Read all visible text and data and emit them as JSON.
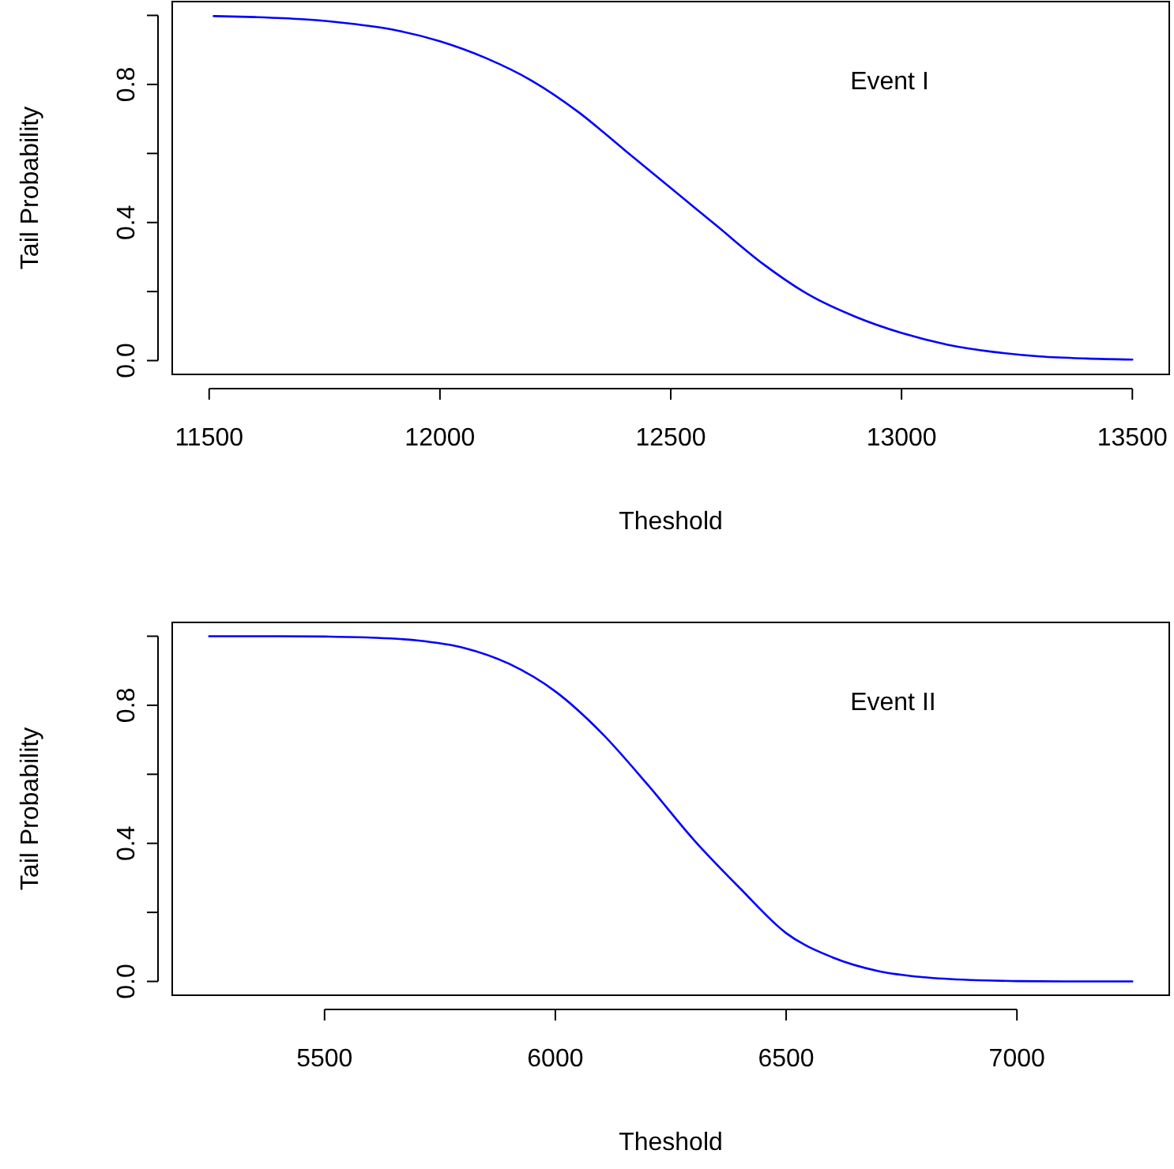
{
  "chart_data": [
    {
      "type": "line",
      "xlabel": "Theshold",
      "ylabel": "Tail Probability",
      "annotations": [
        "Event I"
      ],
      "x": [
        11510,
        11600,
        11700,
        11800,
        11900,
        12000,
        12100,
        12200,
        12300,
        12400,
        12500,
        12600,
        12700,
        12800,
        12900,
        13000,
        13100,
        13200,
        13300,
        13400,
        13500
      ],
      "series": [
        {
          "color": "#0000ff",
          "values": [
            0.998,
            0.995,
            0.989,
            0.977,
            0.958,
            0.925,
            0.876,
            0.81,
            0.72,
            0.61,
            0.5,
            0.39,
            0.28,
            0.19,
            0.127,
            0.08,
            0.046,
            0.025,
            0.012,
            0.006,
            0.003
          ]
        }
      ],
      "xlim": [
        11420,
        13580
      ],
      "xticks": [
        11500,
        12000,
        12500,
        13000,
        13500
      ],
      "ylim": [
        -0.04,
        1.04
      ],
      "yticks": [
        {
          "value": 0,
          "label": "0.0"
        },
        {
          "value": 0.2,
          "label": null
        },
        {
          "value": 0.4,
          "label": "0.4"
        },
        {
          "value": 0.6,
          "label": null
        },
        {
          "value": 0.8,
          "label": "0.8"
        },
        {
          "value": 1,
          "label": null
        }
      ]
    },
    {
      "type": "line",
      "xlabel": "Theshold",
      "ylabel": "Tail Probability",
      "annotations": [
        "Event II"
      ],
      "x": [
        5250,
        5400,
        5500,
        5600,
        5700,
        5800,
        5900,
        6000,
        6100,
        6200,
        6300,
        6400,
        6500,
        6600,
        6700,
        6800,
        6900,
        7000,
        7100,
        7250
      ],
      "series": [
        {
          "color": "#0000ff",
          "values": [
            1.0,
            1.0,
            0.999,
            0.996,
            0.988,
            0.967,
            0.92,
            0.84,
            0.72,
            0.57,
            0.41,
            0.27,
            0.14,
            0.07,
            0.03,
            0.012,
            0.004,
            0.001,
            0.0,
            0.0
          ]
        }
      ],
      "xlim": [
        5170,
        7330
      ],
      "xticks": [
        5500,
        6000,
        6500,
        7000
      ],
      "ylim": [
        -0.04,
        1.04
      ],
      "yticks": [
        {
          "value": 0,
          "label": "0.0"
        },
        {
          "value": 0.2,
          "label": null
        },
        {
          "value": 0.4,
          "label": "0.4"
        },
        {
          "value": 0.6,
          "label": null
        },
        {
          "value": 0.8,
          "label": "0.8"
        },
        {
          "value": 1,
          "label": null
        }
      ]
    }
  ]
}
